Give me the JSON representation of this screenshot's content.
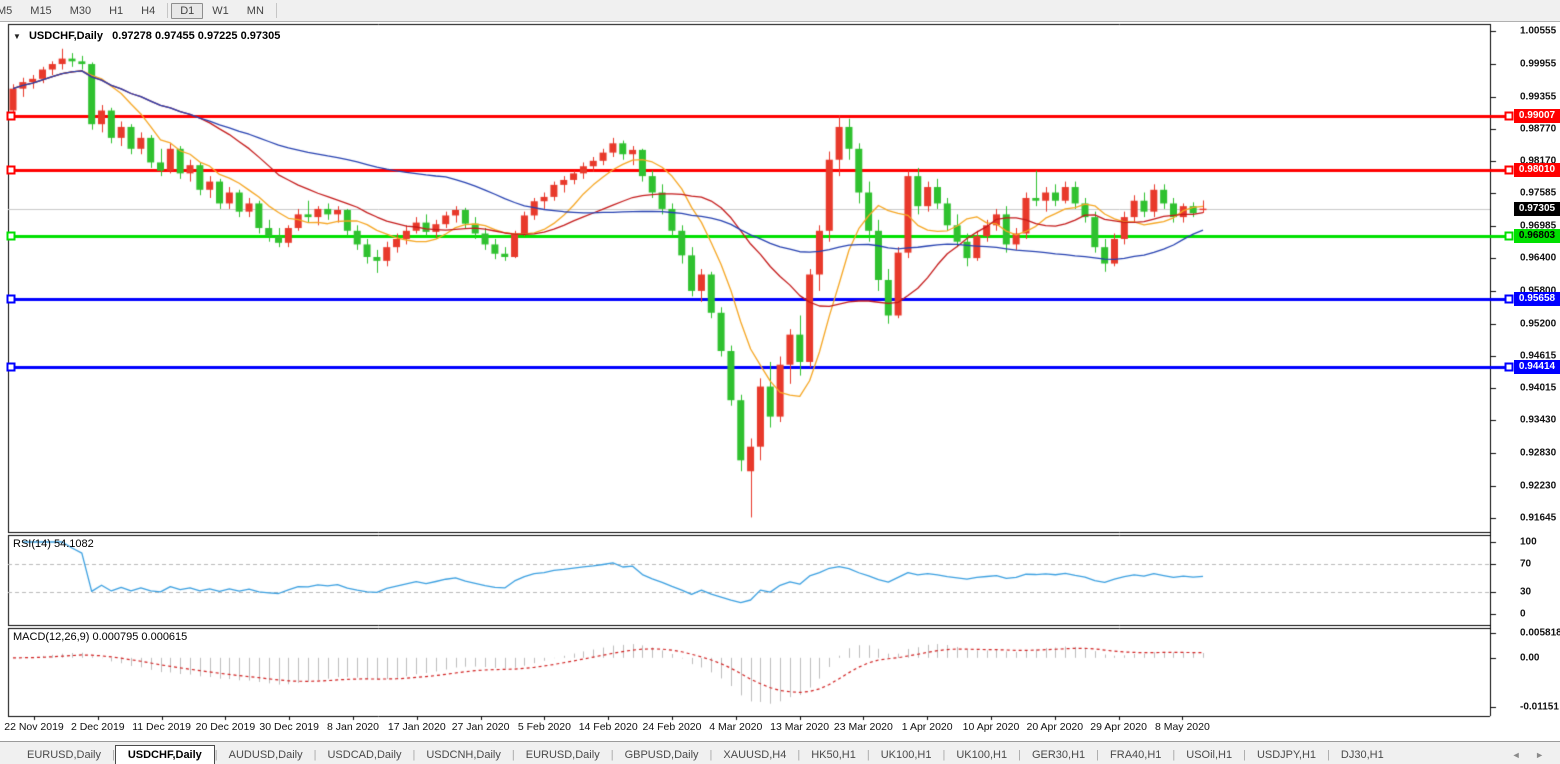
{
  "toolbar": {
    "timeframes": [
      {
        "label": "M5",
        "active": false,
        "clipped": true
      },
      {
        "label": "M15",
        "active": false
      },
      {
        "label": "M30",
        "active": false
      },
      {
        "label": "H1",
        "active": false
      },
      {
        "label": "H4",
        "active": false
      },
      {
        "label": "D1",
        "active": true,
        "divider_before": true
      },
      {
        "label": "W1",
        "active": false
      },
      {
        "label": "MN",
        "active": false
      }
    ]
  },
  "chart_data": {
    "type": "candlestick",
    "symbol_title": "USDCHF,Daily",
    "ohlc_text": "0.97278 0.97455 0.97225 0.97305",
    "up_color": "#e8392b",
    "down_color": "#2fc12f",
    "x_labels": [
      "22 Nov 2019",
      "2 Dec 2019",
      "11 Dec 2019",
      "20 Dec 2019",
      "30 Dec 2019",
      "8 Jan 2020",
      "17 Jan 2020",
      "27 Jan 2020",
      "5 Feb 2020",
      "14 Feb 2020",
      "24 Feb 2020",
      "4 Mar 2020",
      "13 Mar 2020",
      "23 Mar 2020",
      "1 Apr 2020",
      "10 Apr 2020",
      "20 Apr 2020",
      "29 Apr 2020",
      "8 May 2020"
    ],
    "y_ticks": [
      1.00555,
      0.99955,
      0.99355,
      0.9877,
      0.9817,
      0.97585,
      0.96985,
      0.964,
      0.958,
      0.952,
      0.94615,
      0.94015,
      0.9343,
      0.9283,
      0.9223,
      0.91645
    ],
    "ylim": [
      0.91645,
      1.00555
    ],
    "horizontal_lines": [
      {
        "value": 0.99007,
        "color": "#ff0000",
        "text_color": "#ffffff"
      },
      {
        "value": 0.9801,
        "color": "#ff0000",
        "text_color": "#ffffff"
      },
      {
        "value": 0.96803,
        "color": "#00e000",
        "text_color": "#000000"
      },
      {
        "value": 0.95658,
        "color": "#0000ff",
        "text_color": "#ffffff"
      },
      {
        "value": 0.94414,
        "color": "#0000ff",
        "text_color": "#ffffff"
      }
    ],
    "current_price": {
      "value": 0.97305,
      "line_color": "#c8c8c8",
      "badge_bg": "#000000",
      "text_color": "#ffffff"
    },
    "moving_averages": [
      {
        "period": 8,
        "color": "#f5a623"
      },
      {
        "period": 20,
        "color": "#c41a1a"
      },
      {
        "period": 45,
        "color": "#2540b0"
      }
    ],
    "indicators": {
      "rsi": {
        "label": "RSI(14) 54.1082",
        "period": 14,
        "current": "54.1082",
        "levels": [
          70,
          30
        ],
        "ticks": [
          {
            "v": 100,
            "t": "100"
          },
          {
            "v": 70,
            "t": "70"
          },
          {
            "v": 30,
            "t": "30"
          },
          {
            "v": 0,
            "t": "0"
          }
        ],
        "color": "#3a9fe0",
        "level_color": "#b8b8b8"
      },
      "macd": {
        "label": "MACD(12,26,9) 0.000795 0.000615",
        "fast": 12,
        "slow": 26,
        "signal": 9,
        "current": "0.000795 0.000615",
        "ticks": [
          {
            "v": 0.005818,
            "t": "0.005818"
          },
          {
            "v": 0,
            "t": "0.00"
          },
          {
            "v": -0.011514,
            "t": "-0.01151"
          }
        ],
        "range": [
          0.005818,
          -0.011514
        ],
        "hist_color": "#bdbdbd",
        "signal_color": "#d02020"
      }
    },
    "candles": [
      [
        0.991,
        0.9958,
        0.9905,
        0.995
      ],
      [
        0.995,
        0.997,
        0.9935,
        0.9962
      ],
      [
        0.9962,
        0.9975,
        0.995,
        0.9968
      ],
      [
        0.9968,
        0.999,
        0.996,
        0.9985
      ],
      [
        0.9985,
        1.0,
        0.9975,
        0.9995
      ],
      [
        0.9995,
        1.0023,
        0.9985,
        1.0005
      ],
      [
        1.0005,
        1.0015,
        0.999,
        1.0
      ],
      [
        1.0,
        1.001,
        0.9985,
        0.9995
      ],
      [
        0.9995,
        0.9998,
        0.9875,
        0.9885
      ],
      [
        0.9885,
        0.992,
        0.987,
        0.991
      ],
      [
        0.991,
        0.9915,
        0.985,
        0.986
      ],
      [
        0.986,
        0.989,
        0.9845,
        0.988
      ],
      [
        0.988,
        0.9885,
        0.983,
        0.984
      ],
      [
        0.984,
        0.987,
        0.983,
        0.986
      ],
      [
        0.986,
        0.9865,
        0.9805,
        0.9815
      ],
      [
        0.9815,
        0.984,
        0.979,
        0.98
      ],
      [
        0.98,
        0.985,
        0.9795,
        0.984
      ],
      [
        0.984,
        0.9845,
        0.9785,
        0.9795
      ],
      [
        0.9795,
        0.982,
        0.978,
        0.981
      ],
      [
        0.981,
        0.9815,
        0.9755,
        0.9765
      ],
      [
        0.9765,
        0.979,
        0.975,
        0.978
      ],
      [
        0.978,
        0.9785,
        0.973,
        0.974
      ],
      [
        0.974,
        0.977,
        0.973,
        0.976
      ],
      [
        0.976,
        0.9765,
        0.9715,
        0.9725
      ],
      [
        0.9725,
        0.975,
        0.9715,
        0.974
      ],
      [
        0.974,
        0.9745,
        0.9685,
        0.9695
      ],
      [
        0.9695,
        0.971,
        0.967,
        0.968
      ],
      [
        0.968,
        0.9695,
        0.966,
        0.9668
      ],
      [
        0.9668,
        0.97,
        0.966,
        0.9695
      ],
      [
        0.9695,
        0.973,
        0.969,
        0.972
      ],
      [
        0.972,
        0.9745,
        0.9705,
        0.9715
      ],
      [
        0.9715,
        0.9735,
        0.97,
        0.973
      ],
      [
        0.973,
        0.974,
        0.971,
        0.972
      ],
      [
        0.972,
        0.9735,
        0.9705,
        0.9728
      ],
      [
        0.9728,
        0.973,
        0.968,
        0.969
      ],
      [
        0.969,
        0.97,
        0.9655,
        0.9665
      ],
      [
        0.9665,
        0.9675,
        0.963,
        0.9642
      ],
      [
        0.9642,
        0.9655,
        0.9613,
        0.9635
      ],
      [
        0.9635,
        0.967,
        0.9625,
        0.966
      ],
      [
        0.966,
        0.9685,
        0.965,
        0.9675
      ],
      [
        0.9675,
        0.97,
        0.9665,
        0.969
      ],
      [
        0.969,
        0.9715,
        0.9685,
        0.9705
      ],
      [
        0.9705,
        0.972,
        0.968,
        0.9688
      ],
      [
        0.9688,
        0.971,
        0.9678,
        0.9702
      ],
      [
        0.9702,
        0.9725,
        0.9695,
        0.9718
      ],
      [
        0.9718,
        0.9735,
        0.9705,
        0.9728
      ],
      [
        0.9728,
        0.9732,
        0.9695,
        0.9703
      ],
      [
        0.9703,
        0.9715,
        0.9675,
        0.9685
      ],
      [
        0.9685,
        0.9695,
        0.9655,
        0.9665
      ],
      [
        0.9665,
        0.9675,
        0.9638,
        0.9648
      ],
      [
        0.9648,
        0.966,
        0.9635,
        0.9642
      ],
      [
        0.9642,
        0.969,
        0.964,
        0.9685
      ],
      [
        0.9685,
        0.9725,
        0.968,
        0.9718
      ],
      [
        0.9718,
        0.975,
        0.971,
        0.9744
      ],
      [
        0.9744,
        0.976,
        0.973,
        0.9752
      ],
      [
        0.9752,
        0.978,
        0.9745,
        0.9774
      ],
      [
        0.9774,
        0.979,
        0.976,
        0.9783
      ],
      [
        0.9783,
        0.98,
        0.9775,
        0.9795
      ],
      [
        0.9795,
        0.9815,
        0.9785,
        0.9808
      ],
      [
        0.9808,
        0.9825,
        0.9798,
        0.9818
      ],
      [
        0.9818,
        0.984,
        0.981,
        0.9833
      ],
      [
        0.9833,
        0.986,
        0.9825,
        0.985
      ],
      [
        0.985,
        0.9855,
        0.982,
        0.983
      ],
      [
        0.983,
        0.9845,
        0.981,
        0.9838
      ],
      [
        0.9838,
        0.984,
        0.978,
        0.979
      ],
      [
        0.979,
        0.98,
        0.975,
        0.976
      ],
      [
        0.976,
        0.9775,
        0.972,
        0.973
      ],
      [
        0.973,
        0.974,
        0.968,
        0.969
      ],
      [
        0.969,
        0.97,
        0.963,
        0.9645
      ],
      [
        0.9645,
        0.966,
        0.957,
        0.958
      ],
      [
        0.958,
        0.962,
        0.956,
        0.961
      ],
      [
        0.961,
        0.9615,
        0.953,
        0.954
      ],
      [
        0.954,
        0.955,
        0.946,
        0.947
      ],
      [
        0.947,
        0.948,
        0.937,
        0.938
      ],
      [
        0.938,
        0.939,
        0.925,
        0.927
      ],
      [
        0.925,
        0.931,
        0.91655,
        0.9295
      ],
      [
        0.9295,
        0.942,
        0.927,
        0.9405
      ],
      [
        0.9405,
        0.945,
        0.933,
        0.935
      ],
      [
        0.935,
        0.946,
        0.934,
        0.9445
      ],
      [
        0.9445,
        0.951,
        0.941,
        0.95
      ],
      [
        0.95,
        0.9535,
        0.9425,
        0.945
      ],
      [
        0.945,
        0.962,
        0.944,
        0.961
      ],
      [
        0.961,
        0.97,
        0.958,
        0.969
      ],
      [
        0.969,
        0.9835,
        0.967,
        0.982
      ],
      [
        0.982,
        0.9901,
        0.979,
        0.988
      ],
      [
        0.988,
        0.9895,
        0.982,
        0.984
      ],
      [
        0.984,
        0.985,
        0.974,
        0.976
      ],
      [
        0.976,
        0.978,
        0.967,
        0.969
      ],
      [
        0.969,
        0.971,
        0.958,
        0.96
      ],
      [
        0.96,
        0.962,
        0.952,
        0.9535
      ],
      [
        0.9535,
        0.966,
        0.953,
        0.965
      ],
      [
        0.965,
        0.98,
        0.964,
        0.979
      ],
      [
        0.979,
        0.9805,
        0.972,
        0.9735
      ],
      [
        0.9735,
        0.978,
        0.9725,
        0.977
      ],
      [
        0.977,
        0.9785,
        0.973,
        0.974
      ],
      [
        0.974,
        0.975,
        0.969,
        0.97
      ],
      [
        0.97,
        0.972,
        0.966,
        0.967
      ],
      [
        0.967,
        0.9685,
        0.9625,
        0.964
      ],
      [
        0.964,
        0.969,
        0.9635,
        0.968
      ],
      [
        0.968,
        0.971,
        0.967,
        0.97
      ],
      [
        0.97,
        0.973,
        0.969,
        0.972
      ],
      [
        0.972,
        0.9735,
        0.965,
        0.9665
      ],
      [
        0.9665,
        0.9695,
        0.9655,
        0.9685
      ],
      [
        0.9685,
        0.976,
        0.9675,
        0.975
      ],
      [
        0.975,
        0.98,
        0.9735,
        0.9745
      ],
      [
        0.9745,
        0.977,
        0.9725,
        0.976
      ],
      [
        0.976,
        0.9775,
        0.9735,
        0.9745
      ],
      [
        0.9745,
        0.978,
        0.974,
        0.977
      ],
      [
        0.977,
        0.978,
        0.973,
        0.974
      ],
      [
        0.974,
        0.975,
        0.9705,
        0.9715
      ],
      [
        0.9715,
        0.9725,
        0.965,
        0.966
      ],
      [
        0.966,
        0.9675,
        0.9615,
        0.963
      ],
      [
        0.963,
        0.9685,
        0.9625,
        0.9675
      ],
      [
        0.9675,
        0.9725,
        0.9665,
        0.9715
      ],
      [
        0.9715,
        0.9755,
        0.9705,
        0.9745
      ],
      [
        0.9745,
        0.976,
        0.9715,
        0.9725
      ],
      [
        0.9725,
        0.9775,
        0.9715,
        0.9765
      ],
      [
        0.9765,
        0.9775,
        0.973,
        0.974
      ],
      [
        0.974,
        0.975,
        0.9705,
        0.9715
      ],
      [
        0.9715,
        0.974,
        0.9705,
        0.9735
      ],
      [
        0.9735,
        0.9742,
        0.9715,
        0.9722
      ],
      [
        0.97278,
        0.97455,
        0.97225,
        0.97305
      ]
    ]
  },
  "tabbar": {
    "tabs": [
      {
        "label": "EURUSD,Daily",
        "active": false
      },
      {
        "label": "USDCHF,Daily",
        "active": true
      },
      {
        "label": "AUDUSD,Daily",
        "active": false
      },
      {
        "label": "USDCAD,Daily",
        "active": false
      },
      {
        "label": "USDCNH,Daily",
        "active": false
      },
      {
        "label": "EURUSD,Daily",
        "active": false
      },
      {
        "label": "GBPUSD,Daily",
        "active": false
      },
      {
        "label": "XAUUSD,H4",
        "active": false
      },
      {
        "label": "HK50,H1",
        "active": false
      },
      {
        "label": "UK100,H1",
        "active": false
      },
      {
        "label": "UK100,H1",
        "active": false
      },
      {
        "label": "GER30,H1",
        "active": false
      },
      {
        "label": "FRA40,H1",
        "active": false
      },
      {
        "label": "USOil,H1",
        "active": false
      },
      {
        "label": "USDJPY,H1",
        "active": false
      },
      {
        "label": "DJ30,H1",
        "active": false
      }
    ],
    "arrows": [
      "◄",
      "►"
    ]
  }
}
